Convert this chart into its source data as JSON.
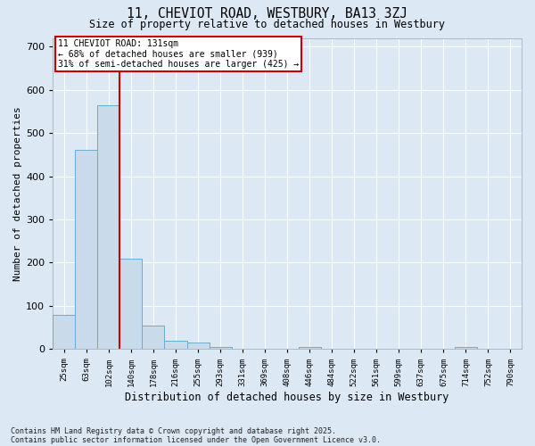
{
  "title": "11, CHEVIOT ROAD, WESTBURY, BA13 3ZJ",
  "subtitle": "Size of property relative to detached houses in Westbury",
  "xlabel": "Distribution of detached houses by size in Westbury",
  "ylabel": "Number of detached properties",
  "bar_color": "#c9daea",
  "bar_edge_color": "#6aaad4",
  "background_color": "#dce8f3",
  "grid_color": "#ffffff",
  "categories": [
    "25sqm",
    "63sqm",
    "102sqm",
    "140sqm",
    "178sqm",
    "216sqm",
    "255sqm",
    "293sqm",
    "331sqm",
    "369sqm",
    "408sqm",
    "446sqm",
    "484sqm",
    "522sqm",
    "561sqm",
    "599sqm",
    "637sqm",
    "675sqm",
    "714sqm",
    "752sqm",
    "790sqm"
  ],
  "values": [
    78,
    460,
    565,
    210,
    55,
    20,
    15,
    5,
    0,
    0,
    0,
    5,
    0,
    0,
    0,
    0,
    0,
    0,
    5,
    0,
    0
  ],
  "ylim": [
    0,
    720
  ],
  "yticks": [
    0,
    100,
    200,
    300,
    400,
    500,
    600,
    700
  ],
  "vline_pos": 2.5,
  "annotation_line1": "11 CHEVIOT ROAD: 131sqm",
  "annotation_line2": "← 68% of detached houses are smaller (939)",
  "annotation_line3": "31% of semi-detached houses are larger (425) →",
  "annotation_box_color": "#ffffff",
  "annotation_box_edge": "#cc0000",
  "vline_color": "#cc0000",
  "fig_bg": "#dce8f4",
  "footer_line1": "Contains HM Land Registry data © Crown copyright and database right 2025.",
  "footer_line2": "Contains public sector information licensed under the Open Government Licence v3.0."
}
